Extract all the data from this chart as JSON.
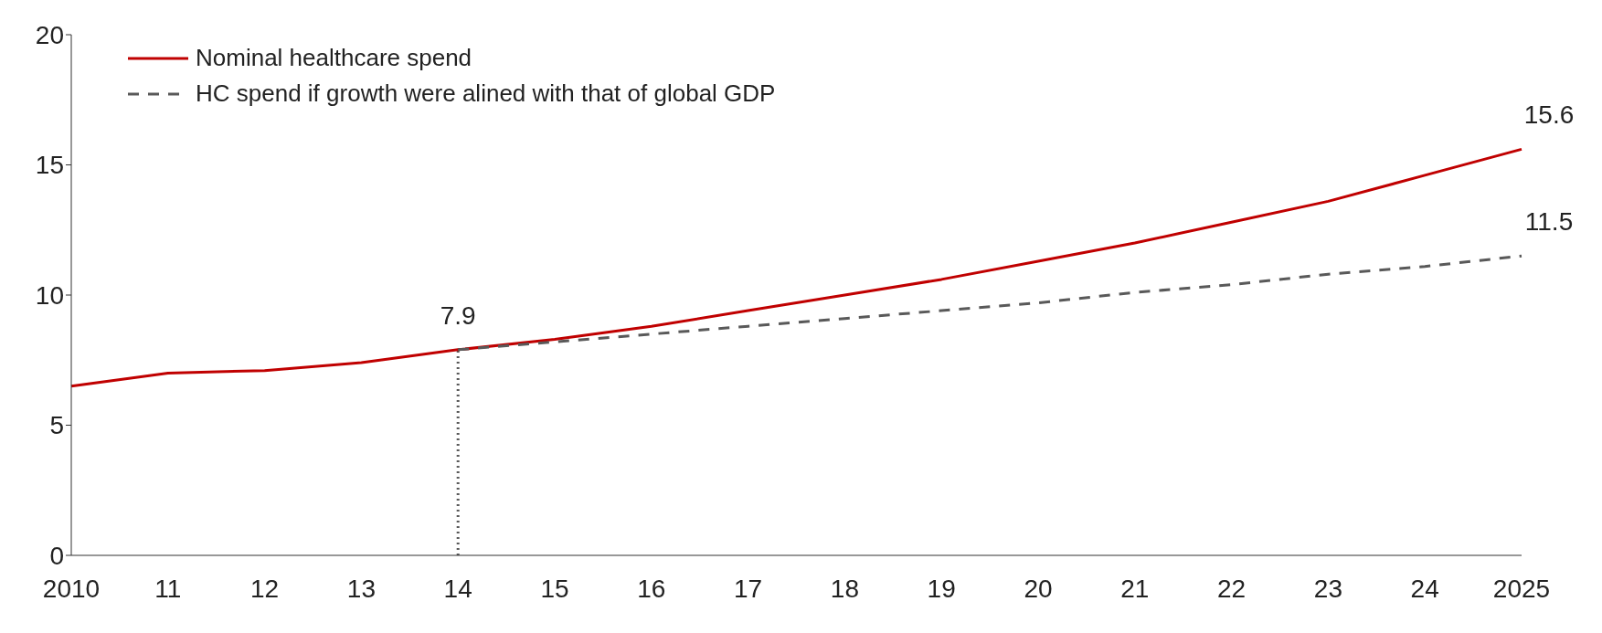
{
  "chart_data": {
    "type": "line",
    "categories": [
      "2010",
      "11",
      "12",
      "13",
      "14",
      "15",
      "16",
      "17",
      "18",
      "19",
      "20",
      "21",
      "22",
      "23",
      "24",
      "2025"
    ],
    "series": [
      {
        "name": "Nominal healthcare spend",
        "color": "#c00000",
        "line_style": "solid",
        "values": [
          6.5,
          7.0,
          7.1,
          7.4,
          7.9,
          8.3,
          8.8,
          9.4,
          10.0,
          10.6,
          11.3,
          12.0,
          12.8,
          13.6,
          14.6,
          15.6
        ],
        "value_labels": [
          null,
          null,
          null,
          null,
          "7.9",
          null,
          null,
          null,
          null,
          null,
          null,
          null,
          null,
          null,
          null,
          "15.6"
        ]
      },
      {
        "name": "HC spend if growth were alined with that of global GDP",
        "color": "#595959",
        "line_style": "dashed",
        "values": [
          null,
          null,
          null,
          null,
          7.9,
          8.2,
          8.5,
          8.8,
          9.1,
          9.4,
          9.7,
          10.1,
          10.4,
          10.8,
          11.1,
          11.5
        ],
        "value_labels": [
          null,
          null,
          null,
          null,
          null,
          null,
          null,
          null,
          null,
          null,
          null,
          null,
          null,
          null,
          null,
          "11.5"
        ]
      }
    ],
    "ylim": [
      0,
      20
    ],
    "yticks": [
      0,
      5,
      10,
      15,
      20
    ],
    "grid": false,
    "legend": "top left",
    "marker": "none",
    "ref_lines": [
      {
        "axis": "x",
        "value": "14",
        "color": "#595959",
        "line_style": "dotted"
      }
    ]
  }
}
